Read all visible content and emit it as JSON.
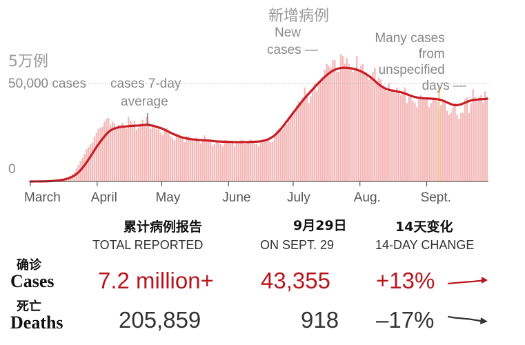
{
  "chart_data": {
    "type": "bar",
    "y_top_label_zh": "5万例",
    "y_ticks": [
      {
        "value": 0,
        "label": "0"
      },
      {
        "value": 50000,
        "label": "50,000 cases"
      }
    ],
    "ylim": [
      0,
      52000
    ],
    "x_months": [
      "March",
      "April",
      "May",
      "June",
      "July",
      "Aug.",
      "Sept."
    ],
    "x_range": [
      "2020-03-01",
      "2020-09-29"
    ],
    "annotations": {
      "avg_label": "cases 7-day average",
      "new_zh": "新增病例",
      "new_label": "New cases —",
      "unspec_label": "Many cases from unspecified days —"
    },
    "series": [
      {
        "type": "bar",
        "daily_cases": [
          15,
          18,
          22,
          25,
          30,
          60,
          80,
          100,
          120,
          180,
          250,
          330,
          450,
          560,
          700,
          850,
          1100,
          1400,
          1800,
          2300,
          3000,
          3800,
          5000,
          6600,
          8500,
          10500,
          12000,
          14000,
          16500,
          17500,
          19000,
          20000,
          23000,
          25000,
          27000,
          27500,
          28000,
          30500,
          32000,
          32500,
          29000,
          30500,
          29500,
          27000,
          29000,
          28000,
          30000,
          28500,
          27000,
          33000,
          31000,
          29500,
          31000,
          26500,
          27500,
          28000,
          31500,
          29500,
          33000,
          30000,
          27000,
          29000,
          27500,
          26500,
          28000,
          25000,
          23500,
          26000,
          27500,
          24500,
          23000,
          22000,
          21000,
          24500,
          24000,
          23000,
          21500,
          20000,
          23000,
          23000,
          22000,
          21500,
          20500,
          22500,
          21000,
          19500,
          20500,
          23500,
          21500,
          21000,
          21500,
          18500,
          19000,
          21000,
          20500,
          19000,
          18000,
          21000,
          21000,
          20000,
          20000,
          20000,
          18000,
          20000,
          19500,
          21000,
          21000,
          19000,
          19500,
          21000,
          21500,
          20000,
          19000,
          19000,
          18000,
          21000,
          20500,
          21000,
          20500,
          22000,
          20000,
          20500,
          24000,
          26000,
          27000,
          26000,
          26500,
          29000,
          29000,
          33000,
          34000,
          36000,
          35000,
          39000,
          41000,
          40000,
          43000,
          48000,
          45000,
          40000,
          43500,
          47000,
          50000,
          46000,
          50500,
          52000,
          53000,
          57000,
          60000,
          59000,
          58000,
          62000,
          62000,
          56000,
          56000,
          65000,
          64000,
          60000,
          63000,
          60000,
          58000,
          56000,
          58000,
          64000,
          57000,
          59000,
          60000,
          56000,
          55000,
          52000,
          54000,
          56000,
          58000,
          51000,
          53000,
          52000,
          49000,
          48000,
          46000,
          50000,
          46000,
          47000,
          45000,
          48000,
          46000,
          44000,
          46000,
          48000,
          40000,
          43000,
          44000,
          41000,
          40000,
          38000,
          42000,
          44000,
          42000,
          42000,
          43000,
          38000,
          40000,
          42000,
          43000,
          41000,
          37000,
          39000,
          42000,
          41000,
          36000,
          34000,
          35000,
          38000,
          40000,
          34000,
          32000,
          35000,
          35000,
          42000,
          43000,
          35000,
          40000,
          47000,
          43000,
          41000,
          43000,
          44000,
          40000,
          46000,
          43355
        ]
      },
      {
        "type": "line",
        "seven_day_avg": [
          10,
          12,
          15,
          20,
          28,
          40,
          55,
          75,
          95,
          130,
          175,
          240,
          310,
          400,
          500,
          620,
          780,
          960,
          1180,
          1450,
          1780,
          2200,
          2700,
          3300,
          4100,
          5000,
          6100,
          7300,
          8600,
          10000,
          11500,
          13000,
          14600,
          16200,
          17700,
          19100,
          20500,
          21800,
          23000,
          24200,
          25200,
          26000,
          26600,
          27000,
          27300,
          27600,
          27800,
          28000,
          28000,
          28100,
          28200,
          28300,
          28400,
          28400,
          28500,
          28500,
          28600,
          28700,
          28800,
          28900,
          28900,
          28800,
          28600,
          28400,
          28100,
          27800,
          27500,
          27200,
          26800,
          26300,
          25800,
          25300,
          24800,
          24300,
          23900,
          23500,
          23100,
          22700,
          22400,
          22200,
          22000,
          21800,
          21600,
          21500,
          21400,
          21300,
          21200,
          21100,
          21100,
          21000,
          21000,
          20900,
          20800,
          20700,
          20600,
          20500,
          20400,
          20400,
          20300,
          20300,
          20300,
          20200,
          20200,
          20200,
          20100,
          20100,
          20100,
          20100,
          20100,
          20100,
          20100,
          20100,
          20100,
          20200,
          20200,
          20300,
          20300,
          20400,
          20500,
          20700,
          20900,
          21200,
          21600,
          22100,
          22700,
          23400,
          24300,
          25300,
          26400,
          27600,
          28900,
          30200,
          31500,
          32800,
          34100,
          35400,
          36700,
          38000,
          39300,
          40600,
          41800,
          43000,
          44100,
          45200,
          46300,
          47400,
          48500,
          49600,
          50600,
          51600,
          52600,
          53500,
          54400,
          55200,
          55900,
          56500,
          57000,
          57400,
          57700,
          57900,
          58000,
          58000,
          58000,
          57900,
          57800,
          57600,
          57400,
          57100,
          56800,
          56400,
          55900,
          55400,
          54800,
          54100,
          53400,
          52600,
          51800,
          50900,
          50000,
          49200,
          48500,
          47900,
          47400,
          47000,
          46700,
          46500,
          46300,
          46100,
          45900,
          45700,
          45500,
          45200,
          44900,
          44500,
          44100,
          43700,
          43400,
          43100,
          42900,
          42700,
          42600,
          42500,
          42400,
          42400,
          42300,
          42300,
          42200,
          42100,
          42000,
          41900,
          41700,
          41400,
          41000,
          40600,
          40100,
          39700,
          39300,
          39000,
          38900,
          39000,
          39200,
          39500,
          39900,
          40300,
          40700,
          41100,
          41400,
          41600,
          41700,
          41800,
          41900,
          42000,
          42000,
          42100,
          42200
        ]
      }
    ],
    "highlight_bar": {
      "value": 49000,
      "color": "#f0c878"
    }
  },
  "table": {
    "headers": [
      {
        "zh": "累计病例报告",
        "en": "TOTAL REPORTED"
      },
      {
        "zh": "9月29日",
        "en": "ON SEPT. 29"
      },
      {
        "zh": "14天变化",
        "en": "14-DAY CHANGE"
      }
    ],
    "rows": [
      {
        "zh": "确诊",
        "label": "Cases",
        "total": "7.2 million+",
        "day": "43,355",
        "change": "+13%",
        "trend": "up"
      },
      {
        "zh": "死亡",
        "label": "Deaths",
        "total": "205,859",
        "day": "918",
        "change": "–17%",
        "trend": "down"
      }
    ]
  },
  "colors": {
    "bar": "#f4b8b8",
    "line": "#c81d25",
    "red_text": "#b8151c",
    "dark_text": "#333333"
  }
}
